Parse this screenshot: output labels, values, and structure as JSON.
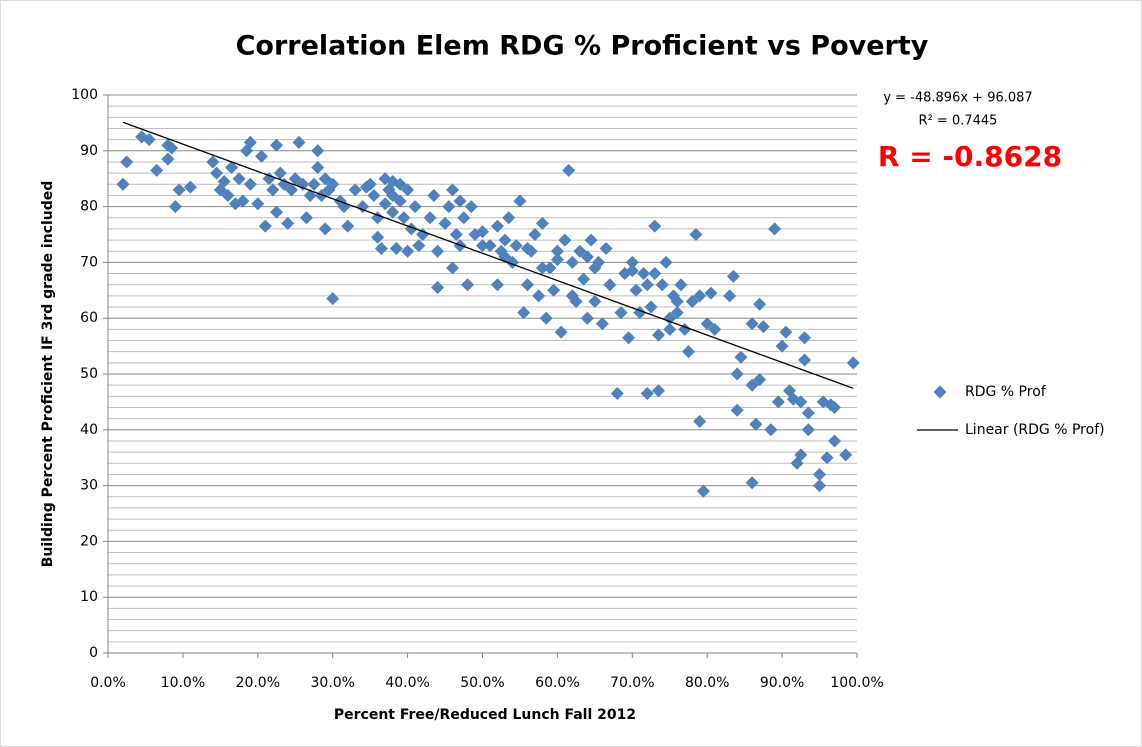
{
  "chart_data": {
    "type": "scatter",
    "title": "Correlation Elem RDG % Proficient vs Poverty",
    "xlabel": "Percent Free/Reduced Lunch Fall  2012",
    "ylabel": "Building  Percent Proficient  IF 3rd grade included",
    "xlim": [
      0,
      1
    ],
    "ylim": [
      0,
      100
    ],
    "xticks": [
      {
        "value": 0,
        "label": "0.0%"
      },
      {
        "value": 0.1,
        "label": "10.0%"
      },
      {
        "value": 0.2,
        "label": "20.0%"
      },
      {
        "value": 0.3,
        "label": "30.0%"
      },
      {
        "value": 0.4,
        "label": "40.0%"
      },
      {
        "value": 0.5,
        "label": "50.0%"
      },
      {
        "value": 0.6,
        "label": "60.0%"
      },
      {
        "value": 0.7,
        "label": "70.0%"
      },
      {
        "value": 0.8,
        "label": "80.0%"
      },
      {
        "value": 0.9,
        "label": "90.0%"
      },
      {
        "value": 1,
        "label": "100.0%"
      }
    ],
    "yticks": [
      0,
      10,
      20,
      30,
      40,
      50,
      60,
      70,
      80,
      90,
      100
    ],
    "yminorticks": [
      2,
      4,
      6,
      8,
      12,
      14,
      16,
      18,
      22,
      24,
      26,
      28,
      32,
      34,
      36,
      38,
      42,
      44,
      46,
      48,
      52,
      54,
      56,
      58,
      62,
      64,
      66,
      68,
      72,
      74,
      76,
      78,
      82,
      84,
      86,
      88,
      92,
      94,
      96,
      98
    ],
    "grid": true,
    "legend": "right",
    "series": [
      {
        "name": "RDG % Prof",
        "color": "#4f81bd",
        "x": [
          0.02,
          0.025,
          0.045,
          0.055,
          0.065,
          0.08,
          0.08,
          0.085,
          0.09,
          0.095,
          0.11,
          0.14,
          0.145,
          0.15,
          0.155,
          0.16,
          0.165,
          0.17,
          0.175,
          0.18,
          0.185,
          0.19,
          0.19,
          0.2,
          0.205,
          0.21,
          0.215,
          0.22,
          0.225,
          0.225,
          0.23,
          0.235,
          0.24,
          0.245,
          0.25,
          0.255,
          0.26,
          0.265,
          0.27,
          0.275,
          0.28,
          0.28,
          0.285,
          0.29,
          0.29,
          0.295,
          0.3,
          0.3,
          0.31,
          0.315,
          0.32,
          0.33,
          0.34,
          0.345,
          0.35,
          0.355,
          0.36,
          0.36,
          0.365,
          0.37,
          0.375,
          0.38,
          0.38,
          0.385,
          0.39,
          0.395,
          0.4,
          0.4,
          0.405,
          0.41,
          0.415,
          0.42,
          0.43,
          0.435,
          0.44,
          0.44,
          0.45,
          0.455,
          0.46,
          0.46,
          0.465,
          0.47,
          0.47,
          0.475,
          0.48,
          0.485,
          0.49,
          0.5,
          0.51,
          0.52,
          0.52,
          0.525,
          0.53,
          0.535,
          0.54,
          0.545,
          0.55,
          0.555,
          0.56,
          0.565,
          0.57,
          0.575,
          0.58,
          0.585,
          0.59,
          0.595,
          0.6,
          0.605,
          0.61,
          0.615,
          0.62,
          0.625,
          0.63,
          0.635,
          0.64,
          0.645,
          0.65,
          0.655,
          0.66,
          0.665,
          0.67,
          0.68,
          0.685,
          0.69,
          0.695,
          0.7,
          0.705,
          0.71,
          0.715,
          0.72,
          0.725,
          0.73,
          0.735,
          0.735,
          0.74,
          0.745,
          0.75,
          0.755,
          0.76,
          0.765,
          0.77,
          0.775,
          0.78,
          0.785,
          0.79,
          0.79,
          0.795,
          0.8,
          0.805,
          0.81,
          0.83,
          0.835,
          0.84,
          0.84,
          0.845,
          0.86,
          0.86,
          0.86,
          0.865,
          0.87,
          0.87,
          0.875,
          0.885,
          0.89,
          0.895,
          0.9,
          0.905,
          0.91,
          0.915,
          0.92,
          0.925,
          0.925,
          0.93,
          0.93,
          0.935,
          0.935,
          0.95,
          0.95,
          0.955,
          0.96,
          0.965,
          0.97,
          0.97,
          0.985,
          0.995,
          0.37,
          0.38,
          0.39,
          0.5,
          0.53,
          0.56,
          0.58,
          0.6,
          0.62,
          0.64,
          0.65,
          0.7,
          0.72,
          0.73,
          0.75,
          0.76
        ],
        "values": [
          84,
          88,
          92.5,
          92,
          86.5,
          91,
          88.5,
          90.5,
          80,
          83,
          83.5,
          88,
          86,
          83,
          84.5,
          82,
          87,
          80.5,
          85,
          81,
          90,
          91.5,
          84,
          80.5,
          89,
          76.5,
          85,
          83,
          91,
          79,
          86,
          84,
          77,
          83,
          85,
          91.5,
          84,
          78,
          82,
          84,
          90,
          87,
          82,
          85,
          76,
          83,
          84,
          63.5,
          81,
          80,
          76.5,
          83,
          80,
          83.5,
          84,
          82,
          78,
          74.5,
          72.5,
          85,
          83,
          84.5,
          79,
          72.5,
          81,
          78,
          72,
          83,
          76,
          80,
          73,
          75,
          78,
          82,
          72,
          65.5,
          77,
          80,
          83,
          69,
          75,
          81,
          73,
          78,
          66,
          80,
          75,
          75.5,
          73,
          76.5,
          66,
          72,
          74,
          78,
          70,
          73,
          81,
          61,
          66,
          72,
          75,
          64,
          77,
          60,
          69,
          65,
          72,
          57.5,
          74,
          86.5,
          70,
          63,
          72,
          67,
          60,
          74,
          63,
          70,
          59,
          72.5,
          66,
          46.5,
          61,
          68,
          56.5,
          70,
          65,
          61,
          68,
          46.5,
          62,
          76.5,
          47,
          57,
          66,
          70,
          60,
          64,
          63,
          66,
          58,
          54,
          63,
          75,
          64,
          41.5,
          29,
          59,
          64.5,
          58,
          64,
          67.5,
          50,
          43.5,
          53,
          59,
          48,
          30.5,
          41,
          62.5,
          49,
          58.5,
          40,
          76,
          45,
          55,
          57.5,
          47,
          45.5,
          34,
          45,
          35.5,
          52.5,
          56.5,
          43,
          40,
          30,
          32,
          45,
          35,
          44.5,
          38,
          44,
          35.5,
          52,
          80.5,
          82,
          84,
          73,
          71,
          72.5,
          69,
          70.5,
          64,
          71,
          69,
          68.5,
          66,
          68,
          58,
          61
        ]
      }
    ],
    "trendline": {
      "name": "Linear (RDG % Prof)",
      "color": "#000000",
      "slope": -48.896,
      "intercept": 96.087,
      "equation": "y = -48.896x + 96.087",
      "r_squared_label": "R² = 0.7445"
    },
    "annotation": "R = -0.8628"
  }
}
